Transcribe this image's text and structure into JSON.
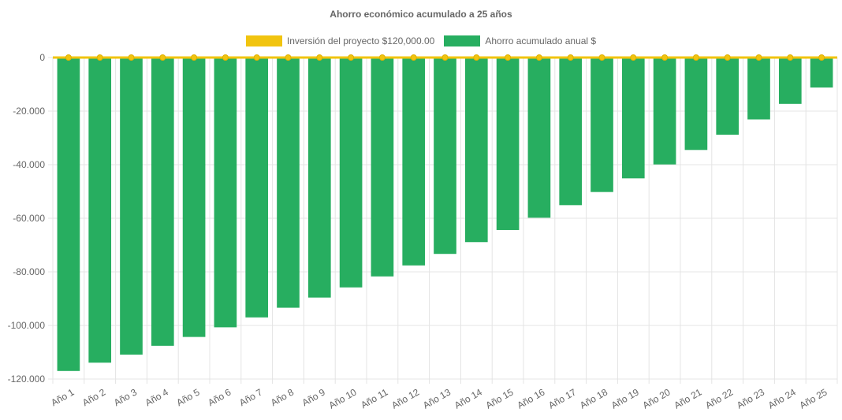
{
  "chart_data": {
    "type": "bar",
    "title": "Ahorro económico acumulado a 25 años",
    "categories": [
      "Año 1",
      "Año 2",
      "Año 3",
      "Año 4",
      "Año 5",
      "Año 6",
      "Año 7",
      "Año 8",
      "Año 9",
      "Año 10",
      "Año 11",
      "Año 12",
      "Año 13",
      "Año 14",
      "Año 15",
      "Año 16",
      "Año 17",
      "Año 18",
      "Año 19",
      "Año 20",
      "Año 21",
      "Año 22",
      "Año 23",
      "Año 24",
      "Año 25"
    ],
    "series": [
      {
        "name": "Inversión del proyecto $120,000.00",
        "type": "line",
        "color": "#f1c40f",
        "values": [
          0,
          0,
          0,
          0,
          0,
          0,
          0,
          0,
          0,
          0,
          0,
          0,
          0,
          0,
          0,
          0,
          0,
          0,
          0,
          0,
          0,
          0,
          0,
          0,
          0
        ]
      },
      {
        "name": "Ahorro acumulado anual $",
        "type": "bar",
        "color": "#27ae60",
        "values": [
          -117000,
          -113900,
          -110900,
          -107600,
          -104300,
          -100700,
          -97000,
          -93400,
          -89600,
          -85800,
          -81700,
          -77600,
          -73300,
          -68900,
          -64400,
          -59800,
          -55100,
          -50200,
          -45100,
          -39900,
          -34500,
          -28800,
          -23100,
          -17300,
          -11200
        ]
      }
    ],
    "ylim": [
      -120000,
      0
    ],
    "yticks": [
      0,
      -20000,
      -40000,
      -60000,
      -80000,
      -100000,
      -120000
    ],
    "ytick_labels": [
      "0",
      "-20.000",
      "-40.000",
      "-60.000",
      "-80.000",
      "-100.000",
      "-120.000"
    ],
    "xlabel": "",
    "ylabel": "",
    "legend_position": "top-center",
    "grid": true
  }
}
